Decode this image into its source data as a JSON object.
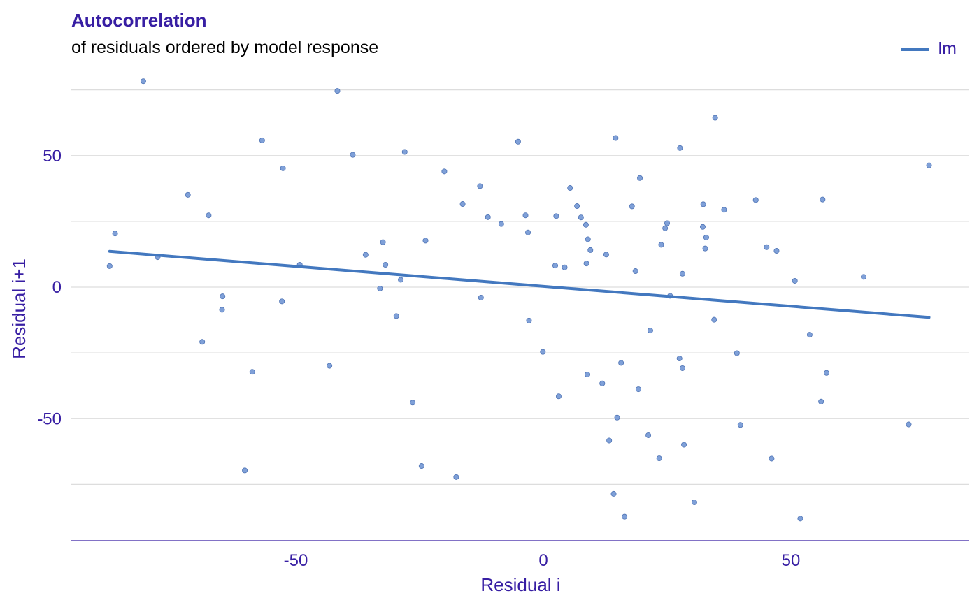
{
  "chart_data": {
    "type": "scatter",
    "title": "Autocorrelation",
    "subtitle": "of residuals ordered by model response",
    "xlabel": "Residual i",
    "ylabel": "Residual i+1",
    "xlim": [
      -96,
      86
    ],
    "ylim": [
      -97,
      80
    ],
    "xticks": [
      -50,
      0,
      50
    ],
    "yticks": [
      -50,
      0,
      50
    ],
    "grid": true,
    "legend_position": "top-right",
    "colors": {
      "points": "#7fa0d8",
      "point_edge": "#4f74b5",
      "line": "#4378bf",
      "text": "#371ea3",
      "grid": "#dddddd",
      "axis": "#371ea3"
    },
    "series": [
      {
        "name": "lm",
        "type": "line",
        "x": [
          -87.6,
          77.9
        ],
        "y": [
          13.6,
          -11.5
        ]
      }
    ],
    "points": [
      [
        -80.8,
        78.3
      ],
      [
        -41.6,
        74.6
      ],
      [
        -87.6,
        8.0
      ],
      [
        -86.5,
        20.4
      ],
      [
        -77.9,
        11.4
      ],
      [
        -71.8,
        35.1
      ],
      [
        -67.6,
        27.3
      ],
      [
        -64.8,
        -3.5
      ],
      [
        -64.9,
        -8.6
      ],
      [
        -68.9,
        -20.8
      ],
      [
        -60.3,
        -69.7
      ],
      [
        -58.8,
        -32.2
      ],
      [
        -56.8,
        55.8
      ],
      [
        -52.6,
        45.2
      ],
      [
        -52.8,
        -5.4
      ],
      [
        -49.2,
        8.5
      ],
      [
        -43.2,
        -29.9
      ],
      [
        -38.5,
        50.3
      ],
      [
        -35.9,
        12.3
      ],
      [
        -33.0,
        -0.5
      ],
      [
        -32.4,
        17.1
      ],
      [
        -31.9,
        8.5
      ],
      [
        -29.7,
        -11.0
      ],
      [
        -28.8,
        2.8
      ],
      [
        -28.0,
        51.4
      ],
      [
        -26.4,
        -43.9
      ],
      [
        -24.6,
        -68.0
      ],
      [
        -23.8,
        17.7
      ],
      [
        -20.0,
        44.0
      ],
      [
        -17.6,
        -72.2
      ],
      [
        -16.3,
        31.6
      ],
      [
        -12.8,
        38.4
      ],
      [
        -12.6,
        -4.0
      ],
      [
        -11.2,
        26.6
      ],
      [
        -8.5,
        24.0
      ],
      [
        -5.1,
        55.3
      ],
      [
        -3.6,
        27.3
      ],
      [
        -3.1,
        20.8
      ],
      [
        -2.9,
        -12.7
      ],
      [
        -0.1,
        -24.6
      ],
      [
        2.4,
        8.2
      ],
      [
        2.6,
        27.0
      ],
      [
        3.1,
        -41.5
      ],
      [
        4.3,
        7.5
      ],
      [
        5.4,
        37.7
      ],
      [
        6.8,
        30.8
      ],
      [
        7.6,
        26.5
      ],
      [
        8.6,
        23.7
      ],
      [
        8.7,
        9.0
      ],
      [
        9.0,
        18.2
      ],
      [
        9.5,
        14.1
      ],
      [
        8.9,
        -33.2
      ],
      [
        11.9,
        -36.6
      ],
      [
        12.7,
        12.4
      ],
      [
        13.3,
        -58.3
      ],
      [
        14.2,
        -78.6
      ],
      [
        14.6,
        56.7
      ],
      [
        14.9,
        -49.6
      ],
      [
        15.7,
        -28.8
      ],
      [
        16.4,
        -87.3
      ],
      [
        17.9,
        30.7
      ],
      [
        18.6,
        6.1
      ],
      [
        19.2,
        -38.8
      ],
      [
        19.5,
        41.5
      ],
      [
        21.2,
        -56.3
      ],
      [
        21.6,
        -16.5
      ],
      [
        23.4,
        -65.1
      ],
      [
        23.8,
        16.1
      ],
      [
        24.6,
        22.4
      ],
      [
        25.0,
        24.3
      ],
      [
        25.6,
        -3.3
      ],
      [
        27.6,
        52.9
      ],
      [
        27.5,
        -27.1
      ],
      [
        28.1,
        -30.8
      ],
      [
        28.1,
        5.1
      ],
      [
        28.4,
        -59.9
      ],
      [
        30.5,
        -81.8
      ],
      [
        32.3,
        31.5
      ],
      [
        32.2,
        22.9
      ],
      [
        32.9,
        18.9
      ],
      [
        32.7,
        14.7
      ],
      [
        34.5,
        -12.4
      ],
      [
        34.7,
        64.4
      ],
      [
        36.5,
        29.4
      ],
      [
        39.1,
        -25.1
      ],
      [
        39.8,
        -52.4
      ],
      [
        42.9,
        33.1
      ],
      [
        45.1,
        15.2
      ],
      [
        46.1,
        -65.2
      ],
      [
        47.1,
        13.8
      ],
      [
        50.8,
        2.4
      ],
      [
        51.9,
        -88.0
      ],
      [
        53.8,
        -18.1
      ],
      [
        56.1,
        -43.5
      ],
      [
        56.4,
        33.3
      ],
      [
        57.2,
        -32.6
      ],
      [
        64.7,
        3.9
      ],
      [
        73.8,
        -52.2
      ],
      [
        77.9,
        46.3
      ]
    ]
  }
}
